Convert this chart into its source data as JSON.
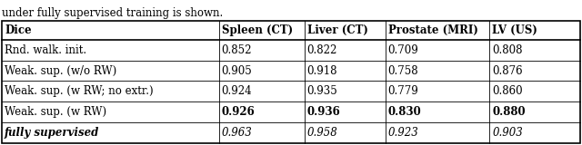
{
  "caption": "under fully supervised training is shown.",
  "headers": [
    "Dice",
    "Spleen (CT)",
    "Liver (CT)",
    "Prostate (MRI)",
    "LV (US)"
  ],
  "rows": [
    {
      "label": "Rnd. walk. init.",
      "values": [
        "0.852",
        "0.822",
        "0.709",
        "0.808"
      ],
      "bold_values": false,
      "italic_label": false,
      "bold_label": false,
      "italic_values": false
    },
    {
      "label": "Weak. sup. (w/o RW)",
      "values": [
        "0.905",
        "0.918",
        "0.758",
        "0.876"
      ],
      "bold_values": false,
      "italic_label": false,
      "bold_label": false,
      "italic_values": false
    },
    {
      "label": "Weak. sup. (w RW; no extr.)",
      "values": [
        "0.924",
        "0.935",
        "0.779",
        "0.860"
      ],
      "bold_values": false,
      "italic_label": false,
      "bold_label": false,
      "italic_values": false
    },
    {
      "label": "Weak. sup. (w RW)",
      "values": [
        "0.926",
        "0.936",
        "0.830",
        "0.880"
      ],
      "bold_values": true,
      "italic_label": false,
      "bold_label": false,
      "italic_values": false
    },
    {
      "label": "fully supervised",
      "values": [
        "0.963",
        "0.958",
        "0.923",
        "0.903"
      ],
      "bold_values": false,
      "italic_label": true,
      "bold_label": true,
      "italic_values": true
    }
  ],
  "font_size": 8.5,
  "caption_font_size": 8.5
}
